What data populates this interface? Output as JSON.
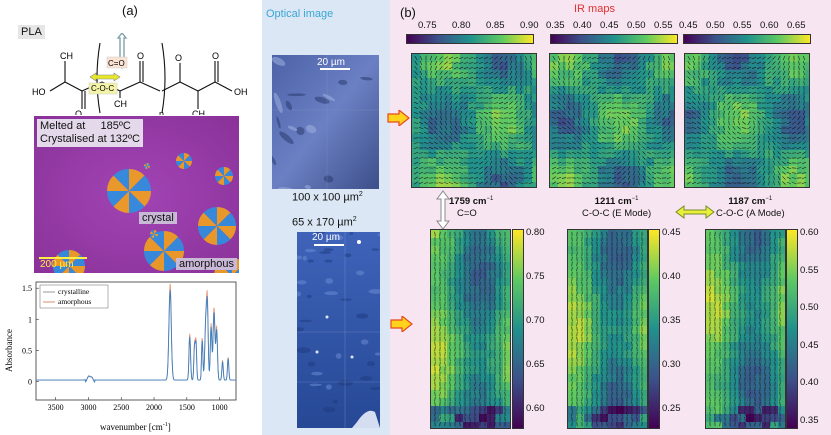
{
  "panel_a": {
    "label": "(a)",
    "material": "PLA",
    "structure": {
      "atoms": {
        "ho": "HO",
        "oh": "OH",
        "o": "O",
        "ch3": "CH",
        "three": "3",
        "n": "n"
      },
      "co_label": "C=O",
      "coc_label": "C-O-C"
    },
    "micrograph": {
      "melted_text": "Melted at",
      "melted_temp": "185ºC",
      "crystal_text": "Crystalised at 132ºC",
      "crystal_label": "crystal",
      "amorphous_label": "amorphous",
      "scale": "200 µm"
    },
    "spectrum": {
      "legend": [
        "crystalline",
        "amorphous"
      ],
      "xlabel": "wavenumber [cm",
      "xlabel_sup": "-1",
      "xlabel_end": "]",
      "ylabel": "Absorbance",
      "xticks": [
        "3500",
        "3000",
        "2500",
        "2000",
        "1500",
        "1000"
      ],
      "yticks": [
        "0",
        "0.5",
        "1",
        "1.5"
      ],
      "colors": {
        "crystalline": "#9a9a9a",
        "amorphous": "#d98f6e",
        "blue": "#3a7fc2"
      }
    }
  },
  "panel_optical": {
    "title": "Optical image",
    "scale1": "20 µm",
    "size1": "100 x 100 µm",
    "size1_sup": "2",
    "size2": "65 x 170 µm",
    "size2_sup": "2",
    "scale2": "20 µm"
  },
  "panel_b": {
    "label": "(b)",
    "title": "IR maps",
    "top_colorbars": [
      {
        "ticks": [
          "0.75",
          "0.80",
          "0.85",
          "0.90"
        ]
      },
      {
        "ticks": [
          "0.35",
          "0.40",
          "0.45",
          "0.50",
          "0.55"
        ]
      },
      {
        "ticks": [
          "0.45",
          "0.50",
          "0.55",
          "0.60",
          "0.65"
        ]
      }
    ],
    "modes": [
      {
        "wavenumber": "1759 cm",
        "sup": "−1",
        "name": "C=O"
      },
      {
        "wavenumber": "1211 cm",
        "sup": "−1",
        "name": "C-O-C (E Mode)"
      },
      {
        "wavenumber": "1187 cm",
        "sup": "−1",
        "name": "C-O-C (A Mode)"
      }
    ],
    "side_colorbars": [
      {
        "ticks": [
          "0.80",
          "0.75",
          "0.70",
          "0.65",
          "0.60"
        ]
      },
      {
        "ticks": [
          "0.45",
          "0.40",
          "0.35",
          "0.30",
          "0.25"
        ]
      },
      {
        "ticks": [
          "0.60",
          "0.55",
          "0.50",
          "0.45",
          "0.40",
          "0.35"
        ]
      }
    ]
  }
}
